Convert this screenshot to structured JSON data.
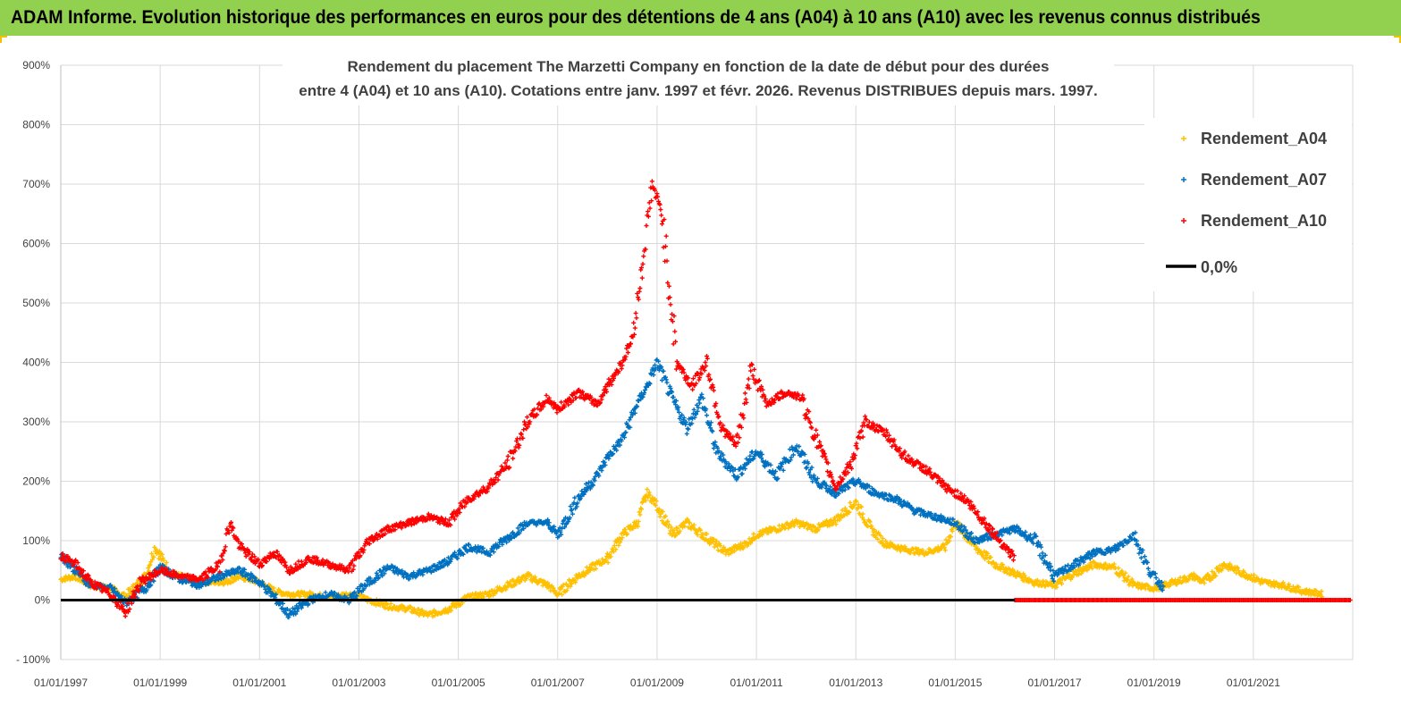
{
  "header": {
    "title": "ADAM Informe. Evolution historique des performances en euros pour des détentions de 4 ans (A04) à 10 ans (A10) avec les revenus connus distribués"
  },
  "chart_data": {
    "type": "scatter",
    "title_lines": [
      "Rendement du placement The Marzetti Company en fonction de la date de début pour des durées",
      "entre 4 (A04) et 10 ans (A10).  Cotations entre janv. 1997 et févr. 2026. Revenus  DISTRIBUES depuis mars. 1997."
    ],
    "y_ticks": [
      "900%",
      "800%",
      "700%",
      "600%",
      "500%",
      "400%",
      "300%",
      "200%",
      "100%",
      "0%",
      "- 100%"
    ],
    "ylim": [
      -100,
      900
    ],
    "x_ticks": [
      "01/01/1997",
      "01/01/1999",
      "01/01/2001",
      "01/01/2003",
      "01/01/2005",
      "01/01/2007",
      "01/01/2009",
      "01/01/2011",
      "01/01/2013",
      "01/01/2015",
      "01/01/2017",
      "01/01/2019",
      "01/01/2021"
    ],
    "xlim": [
      1997.0,
      2023.0
    ],
    "grid": true,
    "legend_position": "top-right",
    "legend": [
      {
        "label": "Rendement_A04",
        "color": "#ffc000",
        "marker": "+"
      },
      {
        "label": "Rendement_A07",
        "color": "#0070c0",
        "marker": "+"
      },
      {
        "label": "Rendement_A10",
        "color": "#ff0000",
        "marker": "+"
      },
      {
        "label": "0,0%",
        "color": "#000000",
        "marker": "line"
      }
    ],
    "series": [
      {
        "name": "Rendement_A04",
        "color": "#ffc000",
        "x": [
          1997.0,
          1997.3,
          1997.6,
          1998.0,
          1998.3,
          1998.7,
          1998.9,
          1999.2,
          1999.6,
          2000.0,
          2000.3,
          2000.6,
          2001.0,
          2001.3,
          2001.6,
          2002.0,
          2002.4,
          2002.8,
          2003.2,
          2003.6,
          2004.0,
          2004.4,
          2004.8,
          2005.2,
          2005.6,
          2006.0,
          2006.4,
          2006.8,
          2007.0,
          2007.4,
          2007.8,
          2008.0,
          2008.3,
          2008.6,
          2008.8,
          2009.0,
          2009.3,
          2009.6,
          2010.0,
          2010.4,
          2010.8,
          2011.0,
          2011.4,
          2011.8,
          2012.2,
          2012.6,
          2013.0,
          2013.3,
          2013.6,
          2014.0,
          2014.4,
          2014.8,
          2015.0,
          2015.4,
          2015.8,
          2016.2,
          2016.6,
          2017.0,
          2017.4,
          2017.8,
          2018.2,
          2018.6,
          2019.0,
          2019.4,
          2019.8,
          2020.0,
          2020.4,
          2020.8,
          2021.2,
          2021.6,
          2022.0,
          2022.4
        ],
        "y": [
          35,
          40,
          25,
          20,
          5,
          40,
          90,
          45,
          35,
          30,
          30,
          40,
          30,
          15,
          10,
          10,
          5,
          10,
          0,
          -10,
          -15,
          -25,
          -15,
          5,
          10,
          25,
          40,
          25,
          10,
          40,
          60,
          70,
          110,
          130,
          180,
          160,
          110,
          130,
          105,
          80,
          95,
          110,
          120,
          130,
          120,
          135,
          165,
          120,
          95,
          85,
          80,
          90,
          130,
          90,
          60,
          45,
          30,
          25,
          45,
          60,
          55,
          25,
          20,
          30,
          40,
          30,
          60,
          45,
          30,
          25,
          15,
          10
        ]
      },
      {
        "name": "Rendement_A07",
        "color": "#0070c0",
        "x": [
          1997.0,
          1997.3,
          1997.6,
          1998.0,
          1998.3,
          1998.7,
          1999.0,
          1999.4,
          1999.8,
          2000.2,
          2000.6,
          2001.0,
          2001.3,
          2001.6,
          2002.0,
          2002.4,
          2002.8,
          2003.2,
          2003.6,
          2004.0,
          2004.4,
          2004.8,
          2005.2,
          2005.6,
          2006.0,
          2006.4,
          2006.8,
          2007.0,
          2007.4,
          2007.8,
          2008.0,
          2008.3,
          2008.6,
          2008.8,
          2009.0,
          2009.3,
          2009.6,
          2009.9,
          2010.2,
          2010.6,
          2011.0,
          2011.4,
          2011.8,
          2012.2,
          2012.6,
          2013.0,
          2013.4,
          2013.8,
          2014.2,
          2014.6,
          2015.0,
          2015.4,
          2015.8,
          2016.2,
          2016.6,
          2017.0,
          2017.4,
          2017.8,
          2018.2,
          2018.6,
          2018.9,
          2019.2
        ],
        "y": [
          75,
          50,
          25,
          20,
          -5,
          20,
          55,
          35,
          25,
          40,
          50,
          30,
          5,
          -25,
          0,
          10,
          0,
          30,
          55,
          40,
          50,
          65,
          90,
          80,
          105,
          130,
          130,
          110,
          170,
          210,
          240,
          270,
          330,
          360,
          400,
          340,
          290,
          340,
          250,
          210,
          250,
          210,
          260,
          200,
          180,
          200,
          180,
          170,
          150,
          140,
          130,
          100,
          110,
          120,
          100,
          40,
          60,
          80,
          85,
          110,
          50,
          20
        ]
      },
      {
        "name": "Rendement_A10",
        "color": "#ff0000",
        "x": [
          1997.0,
          1997.3,
          1997.6,
          1998.0,
          1998.3,
          1998.6,
          1999.0,
          1999.4,
          1999.8,
          2000.2,
          2000.4,
          2000.6,
          2001.0,
          2001.3,
          2001.6,
          2002.0,
          2002.4,
          2002.8,
          2003.2,
          2003.6,
          2004.0,
          2004.4,
          2004.8,
          2005.2,
          2005.6,
          2006.0,
          2006.4,
          2006.8,
          2007.0,
          2007.4,
          2007.8,
          2008.0,
          2008.3,
          2008.5,
          2008.7,
          2008.9,
          2009.1,
          2009.4,
          2009.7,
          2010.0,
          2010.3,
          2010.6,
          2010.9,
          2011.2,
          2011.6,
          2011.9,
          2012.3,
          2012.6,
          2012.9,
          2013.2,
          2013.6,
          2014.0,
          2014.4,
          2014.8,
          2015.2,
          2015.6,
          2015.9,
          2016.2
        ],
        "y": [
          75,
          60,
          30,
          10,
          -20,
          30,
          50,
          40,
          35,
          60,
          130,
          90,
          60,
          80,
          50,
          70,
          60,
          50,
          100,
          120,
          130,
          140,
          130,
          170,
          190,
          230,
          300,
          340,
          320,
          350,
          330,
          360,
          400,
          440,
          560,
          700,
          650,
          400,
          360,
          400,
          290,
          260,
          390,
          330,
          350,
          340,
          250,
          190,
          230,
          300,
          280,
          240,
          220,
          190,
          170,
          130,
          100,
          70
        ]
      }
    ],
    "zero_line_value": 0,
    "zero_line_label": "0,0%"
  }
}
